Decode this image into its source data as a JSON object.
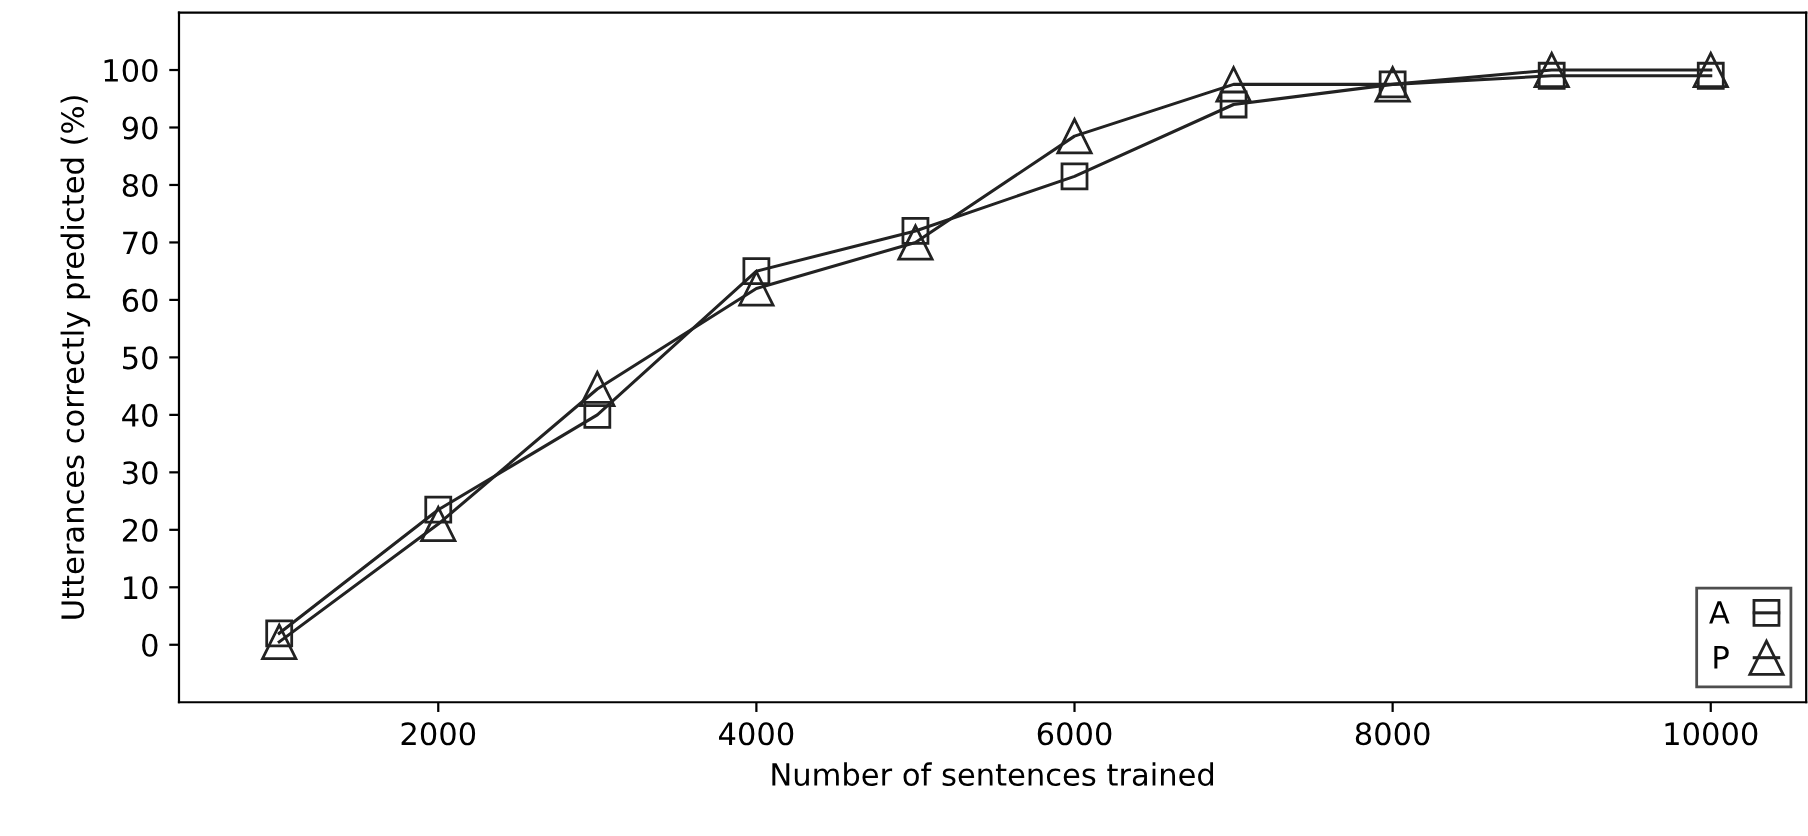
{
  "chart_data": {
    "type": "line",
    "xlabel": "Number of sentences trained",
    "ylabel": "Utterances correctly predicted (%)",
    "x": [
      1000,
      2000,
      3000,
      4000,
      5000,
      6000,
      7000,
      8000,
      9000,
      10000
    ],
    "series": [
      {
        "name": "A",
        "color": "#222222",
        "marker": "square",
        "values": [
          2,
          23.5,
          40,
          65,
          72,
          81.5,
          94,
          97.5,
          99,
          99
        ]
      },
      {
        "name": "P",
        "color": "#222222",
        "marker": "triangle",
        "values": [
          0.5,
          21,
          44.5,
          62,
          70,
          88.5,
          97.5,
          97.5,
          100,
          100
        ]
      }
    ],
    "xlim": [
      370,
      10600
    ],
    "xticks": [
      2000,
      4000,
      6000,
      8000,
      10000
    ],
    "ylim": [
      -10,
      110
    ],
    "yticks": [
      0,
      10,
      20,
      30,
      40,
      50,
      60,
      70,
      80,
      90,
      100
    ],
    "grid": false,
    "legend": "bottom right",
    "line_style": "solid"
  }
}
